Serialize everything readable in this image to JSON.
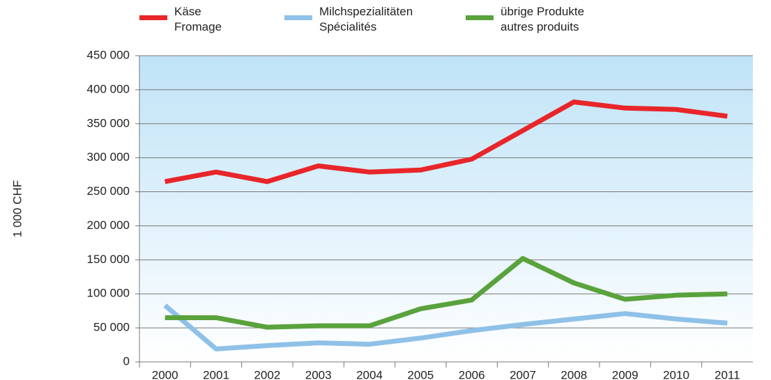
{
  "chart_data": {
    "type": "line",
    "y_label": "1 000 CHF",
    "categories": [
      "2000",
      "2001",
      "2002",
      "2003",
      "2004",
      "2005",
      "2006",
      "2007",
      "2008",
      "2009",
      "2010",
      "2011"
    ],
    "series": [
      {
        "name": "Käse\nFromage",
        "color": "#e8262a",
        "values": [
          265000,
          279000,
          265000,
          288000,
          279000,
          282000,
          298000,
          340000,
          382000,
          373000,
          371000,
          361000
        ]
      },
      {
        "name": "Milchspezialitäten\nSpécialités",
        "color": "#8fc1e8",
        "values": [
          83000,
          19000,
          24000,
          28000,
          26000,
          35000,
          46000,
          55000,
          63000,
          71000,
          63000,
          57000
        ]
      },
      {
        "name": "übrige Produkte\nautres produits",
        "color": "#5aa23c",
        "values": [
          65000,
          65000,
          51000,
          53000,
          53000,
          78000,
          91000,
          152000,
          116000,
          92000,
          98000,
          100000
        ]
      }
    ],
    "ylim": [
      0,
      450000
    ],
    "yticks": [
      {
        "value": 0,
        "label": "0"
      },
      {
        "value": 50000,
        "label": "50 000"
      },
      {
        "value": 100000,
        "label": "100 000"
      },
      {
        "value": 150000,
        "label": "150 000"
      },
      {
        "value": 200000,
        "label": "200 000"
      },
      {
        "value": 250000,
        "label": "250 000"
      },
      {
        "value": 300000,
        "label": "300 000"
      },
      {
        "value": 350000,
        "label": "350 000"
      },
      {
        "value": 400000,
        "label": "400 000"
      },
      {
        "value": 450000,
        "label": "450 000"
      }
    ],
    "grid": true,
    "legend": "top"
  }
}
